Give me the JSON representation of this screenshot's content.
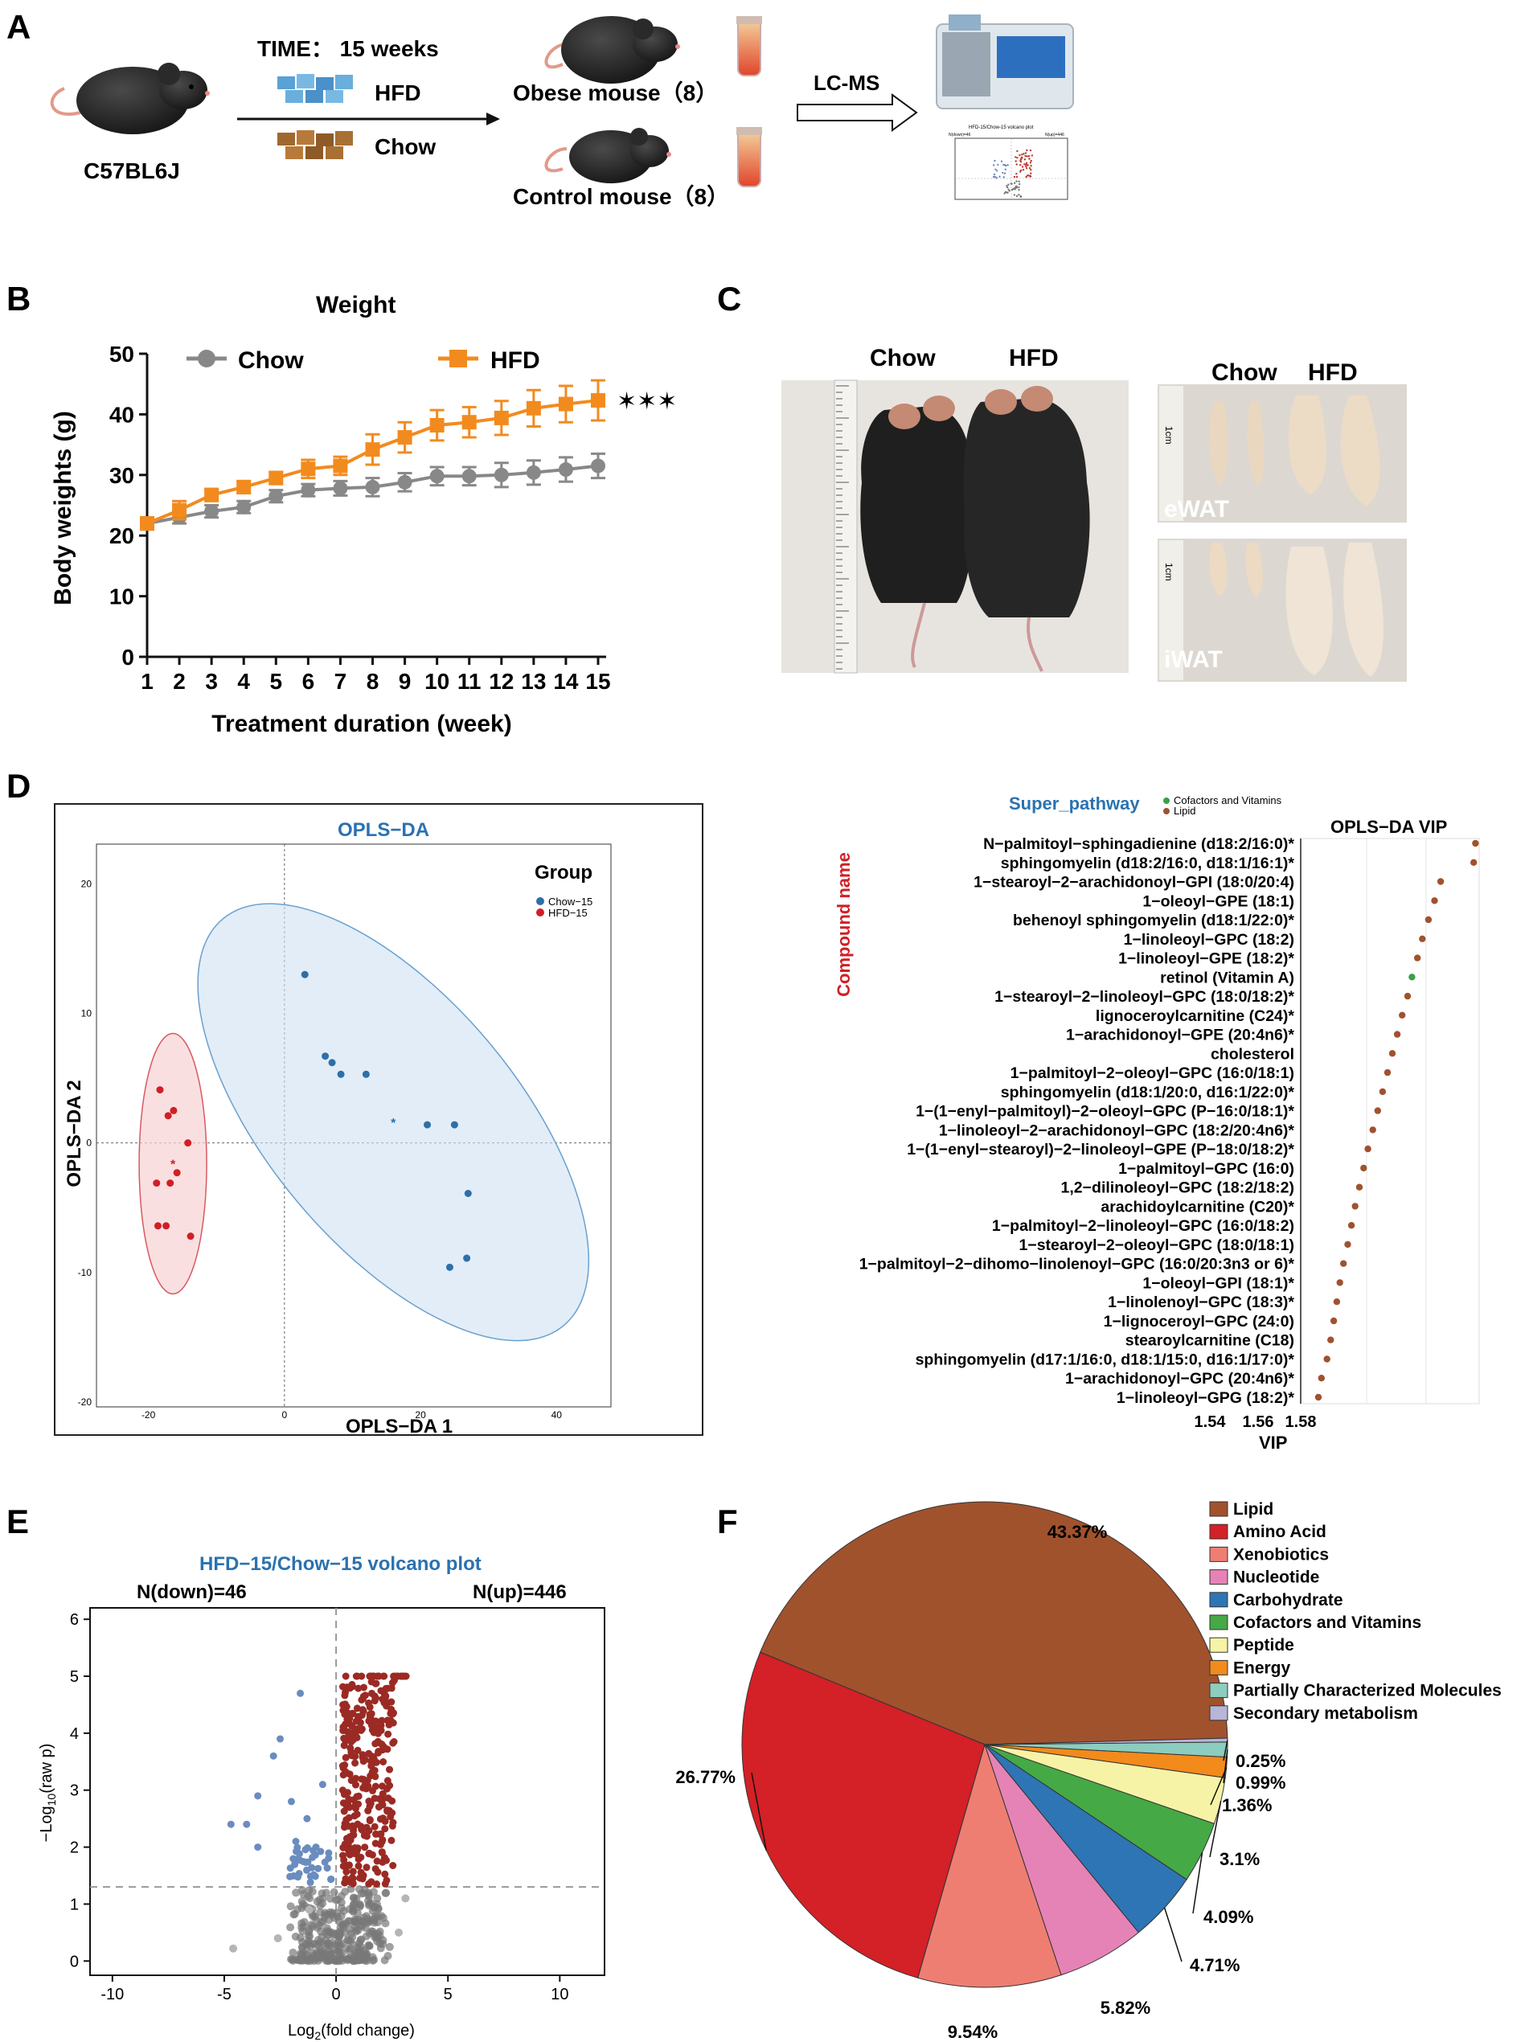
{
  "panels": {
    "a": "A",
    "b": "B",
    "c": "C",
    "d": "D",
    "e": "E",
    "f": "F"
  },
  "panelA": {
    "strain": "C57BL6J",
    "time": "TIME： 15 weeks",
    "hfd": "HFD",
    "chow": "Chow",
    "obese": "Obese mouse（8）",
    "control": "Control mouse（8）",
    "lcms": "LC-MS",
    "mini_title": "HFD-15/Chow-15 volcano plot",
    "mini_down": "N(down)=46",
    "mini_up": "N(up)=446"
  },
  "panelB": {
    "sig": "✶✶✶"
  },
  "panelC": {
    "chow": "Chow",
    "hfd": "HFD",
    "chow2": "Chow",
    "hfd2": "HFD",
    "ewat": "eWAT",
    "iwat": "iWAT",
    "ruler_cm": "1cm",
    "colors": {
      "mouse": "#1c1c1c",
      "fat": "#ead7bf",
      "bg": "#d8d4cc"
    }
  },
  "panelD": {
    "pca": {
      "title": "OPLS−DA",
      "xlabel": "OPLS−DA 1",
      "ylabel": "OPLS−DA 2",
      "group_title": "Group",
      "legend": [
        "Chow−15",
        "HFD−15"
      ]
    },
    "vip": {
      "title": "OPLS−DA VIP",
      "super_label": "Super_pathway",
      "super_items": [
        "Cofactors and Vitamins",
        "Lipid"
      ],
      "ylabel": "Compound name",
      "xlabel": "VIP"
    }
  },
  "panelE": {
    "title": "HFD−15/Chow−15 volcano plot",
    "down": "N(down)=46",
    "up": "N(up)=446",
    "ylabel": "−Log10(raw p)",
    "xlabel": "Log2(fold change)"
  },
  "chart_data": [
    {
      "type": "line",
      "id": "weight",
      "title": "Weight",
      "xlabel": "Treatment duration (week)",
      "ylabel": "Body weights (g)",
      "x": [
        1,
        2,
        3,
        4,
        5,
        6,
        7,
        8,
        9,
        10,
        11,
        12,
        13,
        14,
        15
      ],
      "ylim": [
        0,
        50
      ],
      "yticks": [
        0,
        10,
        20,
        30,
        40,
        50
      ],
      "series": [
        {
          "name": "Chow",
          "color": "#888888",
          "values": [
            22,
            23,
            24,
            24.7,
            26.5,
            27.5,
            27.8,
            28,
            28.8,
            29.8,
            29.8,
            30,
            30.4,
            30.9,
            31.5
          ],
          "err": [
            1,
            1,
            1,
            1,
            1,
            1,
            1.2,
            1.5,
            1.5,
            1.5,
            1.5,
            2,
            2,
            2,
            2
          ]
        },
        {
          "name": "HFD",
          "color": "#f28b1e",
          "values": [
            22,
            24.2,
            26.7,
            28,
            29.5,
            31,
            31.5,
            34.2,
            36.2,
            38.2,
            38.7,
            39.4,
            41,
            41.7,
            42.3
          ],
          "err": [
            1,
            1.5,
            1,
            1,
            1,
            1.5,
            1.5,
            2.5,
            2.5,
            2.5,
            2.5,
            2.8,
            3,
            3,
            3.3
          ]
        }
      ]
    },
    {
      "type": "scatter",
      "id": "oplsda",
      "xlabel": "OPLS−DA 1",
      "ylabel": "OPLS−DA 2",
      "xlim": [
        -30,
        48
      ],
      "ylim": [
        -21,
        24
      ],
      "xticks": [
        -20,
        0,
        20,
        40
      ],
      "yticks": [
        -20,
        -10,
        0,
        10,
        20
      ],
      "series": [
        {
          "name": "Chow−15",
          "color": "#2f6fa6",
          "points": [
            [
              3,
              13
            ],
            [
              6,
              6.7
            ],
            [
              7,
              6.2
            ],
            [
              8.3,
              5.3
            ],
            [
              12,
              5.3
            ],
            [
              21,
              1.4
            ],
            [
              25,
              1.4
            ],
            [
              27,
              -3.9
            ],
            [
              26.8,
              -8.9
            ],
            [
              24.3,
              -9.6
            ]
          ],
          "centroid": [
            16,
            1.6
          ]
        },
        {
          "name": "HFD−15",
          "color": "#d11f26",
          "points": [
            [
              -18.3,
              4.1
            ],
            [
              -17.1,
              2.1
            ],
            [
              -16.3,
              2.5
            ],
            [
              -14.2,
              0
            ],
            [
              -15.8,
              -2.3
            ],
            [
              -16.8,
              -3.1
            ],
            [
              -18.8,
              -3.1
            ],
            [
              -18.6,
              -6.4
            ],
            [
              -17.4,
              -6.4
            ],
            [
              -13.8,
              -7.2
            ]
          ],
          "centroid": [
            -16.4,
            -1.6
          ]
        }
      ]
    },
    {
      "type": "scatter",
      "id": "vip",
      "xlabel": "VIP",
      "xticks": [
        1.54,
        1.56,
        1.58
      ],
      "categories": [
        "N−palmitoyl−sphingadienine (d18:2/16:0)*",
        "sphingomyelin (d18:2/16:0, d18:1/16:1)*",
        "1−stearoyl−2−arachidonoyl−GPI (18:0/20:4)",
        "1−oleoyl−GPE (18:1)",
        "behenoyl sphingomyelin (d18:1/22:0)*",
        "1−linoleoyl−GPC (18:2)",
        "1−linoleoyl−GPE (18:2)*",
        "retinol (Vitamin A)",
        "1−stearoyl−2−linoleoyl−GPC (18:0/18:2)*",
        "lignoceroylcarnitine (C24)*",
        "1−arachidonoyl−GPE (20:4n6)*",
        "cholesterol",
        "1−palmitoyl−2−oleoyl−GPC (16:0/18:1)",
        "sphingomyelin (d18:1/20:0, d16:1/22:0)*",
        "1−(1−enyl−palmitoyl)−2−oleoyl−GPC (P−16:0/18:1)*",
        "1−linoleoyl−2−arachidonoyl−GPC (18:2/20:4n6)*",
        "1−(1−enyl−stearoyl)−2−linoleoyl−GPE (P−18:0/18:2)*",
        "1−palmitoyl−GPC (16:0)",
        "1,2−dilinoleoyl−GPC (18:2/18:2)",
        "arachidoylcarnitine (C20)*",
        "1−palmitoyl−2−linoleoyl−GPC (16:0/18:2)",
        "1−stearoyl−2−oleoyl−GPC (18:0/18:1)",
        "1−palmitoyl−2−dihomo−linolenoyl−GPC (16:0/20:3n3 or 6)*",
        "1−oleoyl−GPI (18:1)*",
        "1−linolenoyl−GPC (18:3)*",
        "1−lignoceroyl−GPC (24:0)",
        "stearoylcarnitine (C18)",
        "sphingomyelin (d17:1/16:0, d18:1/15:0, d16:1/17:0)*",
        "1−arachidonoyl−GPC (20:4n6)*",
        "1−linoleoyl−GPG (18:2)*"
      ],
      "values": [
        1.6086,
        1.6083,
        1.6029,
        1.6019,
        1.6009,
        1.5999,
        1.5991,
        1.5982,
        1.5975,
        1.5966,
        1.5958,
        1.595,
        1.5942,
        1.5934,
        1.5926,
        1.5918,
        1.591,
        1.5903,
        1.5896,
        1.5889,
        1.5883,
        1.5877,
        1.587,
        1.5864,
        1.5859,
        1.5854,
        1.5849,
        1.5843,
        1.5834,
        1.5829
      ],
      "pathway": [
        "Lipid",
        "Lipid",
        "Lipid",
        "Lipid",
        "Lipid",
        "Lipid",
        "Lipid",
        "Cofactors and Vitamins",
        "Lipid",
        "Lipid",
        "Lipid",
        "Lipid",
        "Lipid",
        "Lipid",
        "Lipid",
        "Lipid",
        "Lipid",
        "Lipid",
        "Lipid",
        "Lipid",
        "Lipid",
        "Lipid",
        "Lipid",
        "Lipid",
        "Lipid",
        "Lipid",
        "Lipid",
        "Lipid",
        "Lipid",
        "Lipid"
      ],
      "pathway_colors": {
        "Lipid": "#a0522d",
        "Cofactors and Vitamins": "#3aa04a"
      }
    },
    {
      "type": "scatter",
      "id": "volcano",
      "title": "HFD−15/Chow−15 volcano plot",
      "xlabel": "Log2(fold change)",
      "ylabel": "−Log10(raw p)",
      "xlim": [
        -11,
        12
      ],
      "ylim": [
        -0.25,
        6.2
      ],
      "xticks": [
        -10,
        -5,
        0,
        5,
        10
      ],
      "yticks": [
        0,
        1,
        2,
        3,
        4,
        5,
        6
      ],
      "threshold_p": 1.3,
      "counts": {
        "down": 46,
        "up": 446
      },
      "colors": {
        "up": "#9b2a24",
        "down": "#6a8cbf",
        "ns": "#777777"
      }
    },
    {
      "type": "pie",
      "id": "superpathway",
      "labels": [
        "Lipid",
        "Amino Acid",
        "Xenobiotics",
        "Nucleotide",
        "Carbohydrate",
        "Cofactors and Vitamins",
        "Peptide",
        "Energy",
        "Partially Characterized Molecules",
        "Secondary metabolism"
      ],
      "values": [
        43.37,
        26.77,
        9.54,
        5.82,
        4.71,
        4.09,
        3.1,
        1.36,
        0.99,
        0.25
      ],
      "value_labels": [
        "43.37%",
        "26.77%",
        "9.54%",
        "5.82%",
        "4.71%",
        "4.09%",
        "3.1%",
        "1.36%",
        "0.99%",
        "0.25%"
      ],
      "colors": [
        "#a0522d",
        "#d42027",
        "#ef7e72",
        "#e683b6",
        "#2e75b5",
        "#45a945",
        "#f6f3a6",
        "#f28a1c",
        "#8ccdbf",
        "#b7b6d9"
      ]
    }
  ]
}
